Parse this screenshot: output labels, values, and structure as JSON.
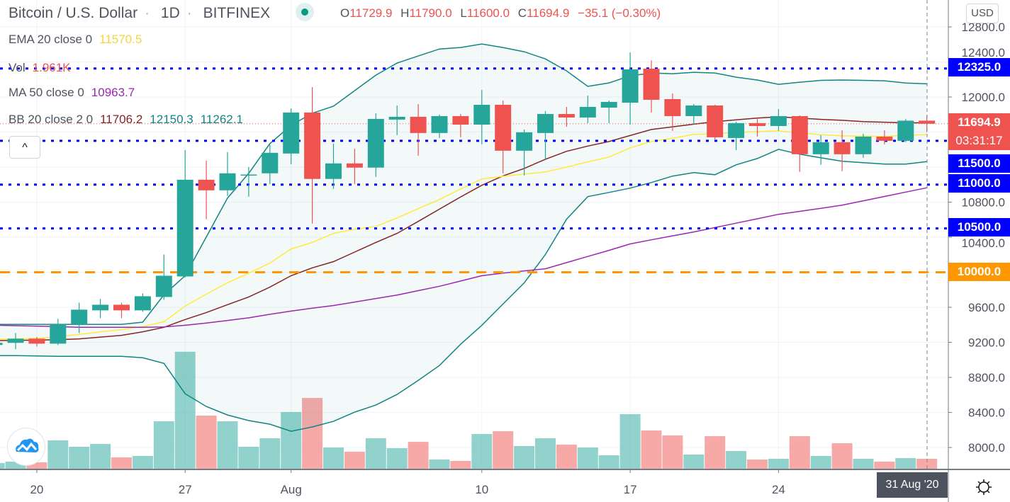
{
  "header": {
    "symbol": "Bitcoin / U.S. Dollar",
    "interval": "1D",
    "exchange": "BITFINEX",
    "sep": "·",
    "ohlc": {
      "o_label": "O",
      "o": "11729.9",
      "h_label": "H",
      "h": "11790.0",
      "l_label": "L",
      "l": "11600.0",
      "c_label": "C",
      "c": "11694.9",
      "change": "−35.1 (−0.30%)"
    }
  },
  "legend": {
    "ema": {
      "label": "EMA 20 close 0",
      "value": "11570.5"
    },
    "vol": {
      "label": "Vol",
      "value": "1.961K"
    },
    "ma": {
      "label": "MA 50 close 0",
      "value": "10963.7"
    },
    "bb": {
      "label": "BB 20 close 2 0",
      "basis": "11706.2",
      "upper": "12150.3",
      "lower": "11262.1"
    }
  },
  "ui": {
    "collapse": "^",
    "currency": "USD",
    "countdown": "03:31:17",
    "crosshair_date": "31 Aug '20",
    "logo_icon": "tradingview-cloud-icon",
    "settings_icon": "gear-icon"
  },
  "colors": {
    "up": "#26a69a",
    "down": "#ef5350",
    "ema": "#ffeb3b",
    "ma": "#9c27b0",
    "bb_basis": "#872323",
    "bb_band": "#138484",
    "hline": "#0000ff",
    "alert_line": "#ff9800"
  },
  "chart_data": {
    "type": "candlestick",
    "price_unit": "USD",
    "ylim": [
      7800,
      13000
    ],
    "grid": true,
    "price_ticks": [
      "12800.0",
      "12400.0",
      "12000.0",
      "10800.0",
      "10400.0",
      "9600.0",
      "9200.0",
      "8800.0",
      "8400.0",
      "8000.0"
    ],
    "time_ticks": [
      {
        "label": "20",
        "date": "2020-07-20"
      },
      {
        "label": "27",
        "date": "2020-07-27"
      },
      {
        "label": "Aug",
        "date": "2020-08-01"
      },
      {
        "label": "10",
        "date": "2020-08-10"
      },
      {
        "label": "17",
        "date": "2020-08-17"
      },
      {
        "label": "24",
        "date": "2020-08-24"
      }
    ],
    "columns": [
      "date",
      "open",
      "high",
      "low",
      "close",
      "volume_k"
    ],
    "candles": [
      [
        "2020-07-18",
        9170,
        9220,
        9150,
        9194,
        1.23
      ],
      [
        "2020-07-19",
        9194,
        9306,
        9121,
        9242,
        1.47
      ],
      [
        "2020-07-20",
        9242,
        9260,
        9153,
        9185,
        1.35
      ],
      [
        "2020-07-21",
        9185,
        9468,
        9170,
        9411,
        5.15
      ],
      [
        "2020-07-22",
        9403,
        9653,
        9306,
        9573,
        4.05
      ],
      [
        "2020-07-23",
        9565,
        9694,
        9476,
        9629,
        4.54
      ],
      [
        "2020-07-24",
        9629,
        9653,
        9476,
        9565,
        2.21
      ],
      [
        "2020-07-25",
        9565,
        9758,
        9548,
        9726,
        2.45
      ],
      [
        "2020-07-26",
        9718,
        10202,
        9686,
        9960,
        8.46
      ],
      [
        "2020-07-27",
        9952,
        11395,
        9940,
        11056,
        20.5
      ],
      [
        "2020-07-28",
        11056,
        11274,
        10605,
        10935,
        9.44
      ],
      [
        "2020-07-29",
        10935,
        11371,
        10871,
        11129,
        8.46
      ],
      [
        "2020-07-30",
        11105,
        11202,
        10863,
        11115,
        4.05
      ],
      [
        "2020-07-31",
        11129,
        11452,
        11008,
        11363,
        5.52
      ],
      [
        "2020-08-01",
        11355,
        11871,
        11234,
        11823,
        10.06
      ],
      [
        "2020-08-02",
        11823,
        12113,
        10556,
        11065,
        12.5
      ],
      [
        "2020-08-03",
        11065,
        11468,
        10952,
        11242,
        3.92
      ],
      [
        "2020-08-04",
        11242,
        11411,
        11008,
        11194,
        3.19
      ],
      [
        "2020-08-05",
        11194,
        11815,
        11089,
        11750,
        5.52
      ],
      [
        "2020-08-06",
        11742,
        11903,
        11565,
        11774,
        3.8
      ],
      [
        "2020-08-07",
        11774,
        11919,
        11331,
        11589,
        4.9
      ],
      [
        "2020-08-08",
        11589,
        11800,
        11532,
        11782,
        1.84
      ],
      [
        "2020-08-09",
        11782,
        11806,
        11540,
        11685,
        1.59
      ],
      [
        "2020-08-10",
        11685,
        12081,
        11460,
        11911,
        6.25
      ],
      [
        "2020-08-11",
        11911,
        11960,
        11129,
        11387,
        6.74
      ],
      [
        "2020-08-12",
        11387,
        11629,
        11105,
        11597,
        4.17
      ],
      [
        "2020-08-13",
        11589,
        11839,
        11290,
        11806,
        5.52
      ],
      [
        "2020-08-14",
        11806,
        11887,
        11661,
        11766,
        4.41
      ],
      [
        "2020-08-15",
        11766,
        12016,
        11702,
        11887,
        3.92
      ],
      [
        "2020-08-16",
        11879,
        11960,
        11702,
        11944,
        2.57
      ],
      [
        "2020-08-17",
        11935,
        12508,
        11685,
        12315,
        9.69
      ],
      [
        "2020-08-18",
        12323,
        12419,
        11823,
        11968,
        6.87
      ],
      [
        "2020-08-19",
        11976,
        12040,
        11613,
        11782,
        6.01
      ],
      [
        "2020-08-20",
        11782,
        11919,
        11685,
        11903,
        2.7
      ],
      [
        "2020-08-21",
        11903,
        11911,
        11508,
        11540,
        5.88
      ],
      [
        "2020-08-22",
        11532,
        11718,
        11395,
        11702,
        3.31
      ],
      [
        "2020-08-23",
        11702,
        11750,
        11548,
        11669,
        1.84
      ],
      [
        "2020-08-24",
        11669,
        11863,
        11613,
        11782,
        1.96
      ],
      [
        "2020-08-25",
        11782,
        11790,
        11145,
        11347,
        5.88
      ],
      [
        "2020-08-26",
        11347,
        11565,
        11226,
        11484,
        2.45
      ],
      [
        "2020-08-27",
        11484,
        11621,
        11153,
        11347,
        4.66
      ],
      [
        "2020-08-28",
        11347,
        11581,
        11306,
        11548,
        1.96
      ],
      [
        "2020-08-29",
        11548,
        11621,
        11460,
        11500,
        1.47
      ],
      [
        "2020-08-30",
        11500,
        11750,
        11484,
        11729.9,
        2.08
      ],
      [
        "2020-08-31",
        11729.9,
        11790,
        11600,
        11694.9,
        1.961
      ]
    ],
    "indicators": {
      "ema20": [
        9234,
        9240,
        9245,
        9265,
        9290,
        9320,
        9345,
        9380,
        9435,
        9613,
        9750,
        9880,
        9990,
        10105,
        10266,
        10340,
        10444,
        10490,
        10524,
        10620,
        10726,
        10830,
        10950,
        11065,
        11095,
        11120,
        11145,
        11200,
        11260,
        11315,
        11420,
        11492,
        11530,
        11573,
        11580,
        11595,
        11605,
        11613,
        11590,
        11570,
        11556,
        11555,
        11550,
        11565,
        11570.5
      ],
      "ma50": [
        9395,
        9390,
        9385,
        9380,
        9371,
        9371,
        9371,
        9371,
        9375,
        9395,
        9420,
        9450,
        9480,
        9520,
        9556,
        9590,
        9620,
        9660,
        9700,
        9740,
        9790,
        9840,
        9900,
        9960,
        9990,
        10015,
        10040,
        10110,
        10180,
        10250,
        10323,
        10370,
        10415,
        10460,
        10510,
        10560,
        10610,
        10661,
        10695,
        10730,
        10766,
        10815,
        10865,
        10915,
        10963.7
      ],
      "bb_basis": [
        9220,
        9222,
        9225,
        9230,
        9240,
        9260,
        9280,
        9320,
        9371,
        9460,
        9540,
        9630,
        9718,
        9830,
        9960,
        10050,
        10121,
        10230,
        10340,
        10444,
        10580,
        10720,
        10860,
        10992,
        11100,
        11185,
        11290,
        11380,
        11440,
        11492,
        11560,
        11629,
        11660,
        11690,
        11718,
        11740,
        11760,
        11774,
        11760,
        11745,
        11734,
        11720,
        11712,
        11705,
        11706.2
      ],
      "bb_upper": [
        9405,
        9405,
        9405,
        9405,
        9405,
        9405,
        9405,
        9430,
        9742,
        9960,
        10403,
        10847,
        11129,
        11468,
        11677,
        11815,
        11895,
        12073,
        12250,
        12387,
        12468,
        12548,
        12565,
        12605,
        12565,
        12516,
        12435,
        12298,
        12121,
        12161,
        12242,
        12274,
        12266,
        12282,
        12274,
        12226,
        12194,
        12145,
        12169,
        12190,
        12194,
        12190,
        12185,
        12160,
        12150.3
      ],
      "bb_lower": [
        9048,
        9048,
        9045,
        9040,
        9040,
        9040,
        9040,
        9024,
        8960,
        8613,
        8468,
        8371,
        8307,
        8266,
        8185,
        8234,
        8298,
        8403,
        8484,
        8605,
        8766,
        8936,
        9178,
        9395,
        9637,
        9879,
        10202,
        10605,
        10863,
        10911,
        10960,
        11024,
        11097,
        11137,
        11113,
        11226,
        11298,
        11403,
        11347,
        11306,
        11266,
        11250,
        11234,
        11234,
        11262.1
      ]
    },
    "horizontal_lines": [
      {
        "price": 12325,
        "label": "12325.0",
        "style": "dotted",
        "color": "#0000ff"
      },
      {
        "price": 11500,
        "label": "11500.0",
        "style": "dotted",
        "color": "#0000ff"
      },
      {
        "price": 11000,
        "label": "11000.0",
        "style": "dotted",
        "color": "#0000ff"
      },
      {
        "price": 10500,
        "label": "10500.0",
        "style": "dotted",
        "color": "#0000ff"
      },
      {
        "price": 10000,
        "label": "10000.0",
        "style": "dashed",
        "color": "#ff9800"
      }
    ],
    "last_price": {
      "price": 11694.9,
      "label": "11694.9"
    }
  }
}
